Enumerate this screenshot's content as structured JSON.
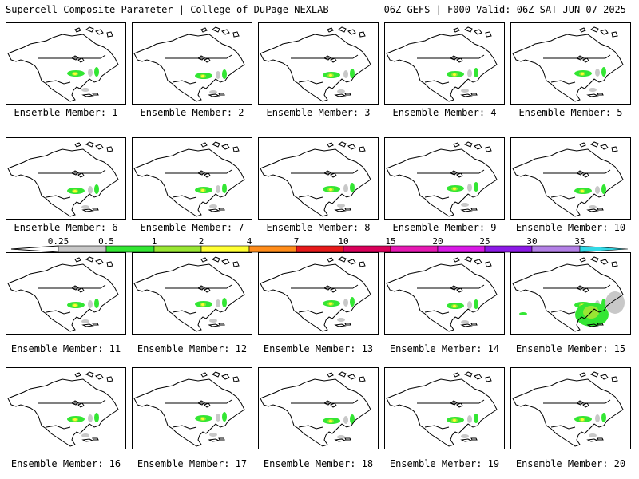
{
  "header": {
    "title_left": "Supercell Composite Parameter | College of DuPage NEXLAB",
    "title_right": "06Z GEFS | F000 Valid: 06Z SAT JUN 07 2025"
  },
  "legend": {
    "ticks": [
      "0.25",
      "0.5",
      "1",
      "2",
      "4",
      "7",
      "10",
      "15",
      "20",
      "25",
      "30",
      "35"
    ],
    "colors": [
      "#c8c8c8",
      "#33e633",
      "#99e633",
      "#ffff33",
      "#ff8c1a",
      "#e61a1a",
      "#d9005a",
      "#e619b3",
      "#d919e6",
      "#8c1ae6",
      "#b380e6",
      "#33d9e6"
    ]
  },
  "members": [
    {
      "label": "Ensemble Member: 1"
    },
    {
      "label": "Ensemble Member: 2"
    },
    {
      "label": "Ensemble Member: 3"
    },
    {
      "label": "Ensemble Member: 4"
    },
    {
      "label": "Ensemble Member: 5"
    },
    {
      "label": "Ensemble Member: 6"
    },
    {
      "label": "Ensemble Member: 7"
    },
    {
      "label": "Ensemble Member: 8"
    },
    {
      "label": "Ensemble Member: 9"
    },
    {
      "label": "Ensemble Member: 10"
    },
    {
      "label": "Ensemble Member: 11"
    },
    {
      "label": "Ensemble Member: 12"
    },
    {
      "label": "Ensemble Member: 13"
    },
    {
      "label": "Ensemble Member: 14"
    },
    {
      "label": "Ensemble Member: 15"
    },
    {
      "label": "Ensemble Member: 16"
    },
    {
      "label": "Ensemble Member: 17"
    },
    {
      "label": "Ensemble Member: 18"
    },
    {
      "label": "Ensemble Member: 19"
    },
    {
      "label": "Ensemble Member: 20"
    }
  ]
}
